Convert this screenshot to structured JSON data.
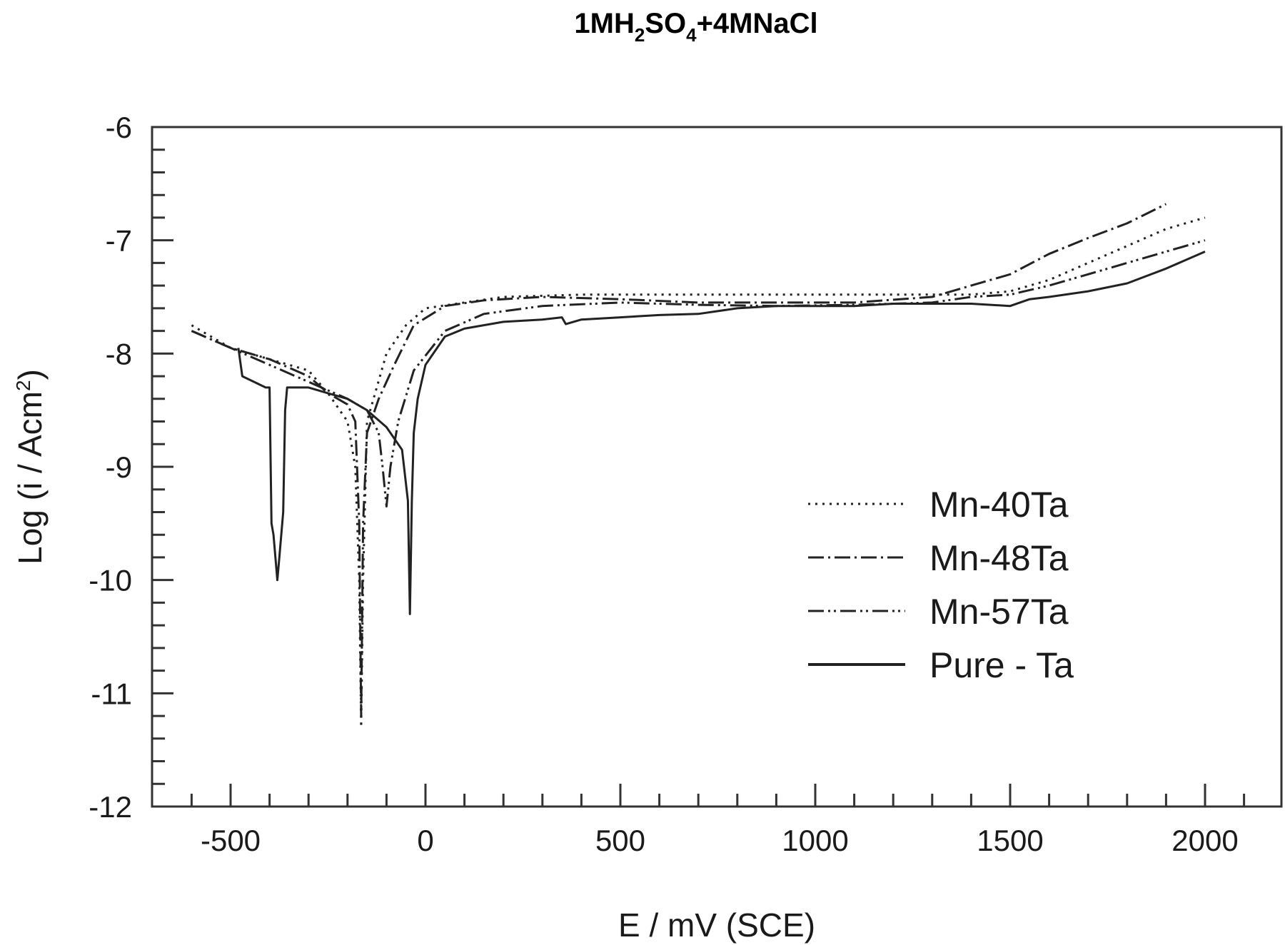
{
  "chart_data": {
    "type": "line",
    "title": "1MH2SO4+4MNaCl",
    "title_parts": {
      "a": "1MH",
      "sub1": "2",
      "b": "SO",
      "sub2": "4",
      "c": "+4MNaCl"
    },
    "xlabel": "E / mV (SCE)",
    "ylabel": "Log (i / Acm2)",
    "ylabel_parts": {
      "main": "Log (i / Acm",
      "sup": "2",
      "end": ")"
    },
    "xlim": [
      -700,
      2200
    ],
    "ylim": [
      -12,
      -6
    ],
    "xticks": [
      -500,
      0,
      500,
      1000,
      1500,
      2000
    ],
    "xtick_labels": [
      "-500",
      "0",
      "500",
      "1000",
      "1500",
      "2000"
    ],
    "yticks": [
      -6,
      -7,
      -8,
      -9,
      -10,
      -11,
      -12
    ],
    "ytick_labels": [
      "-6",
      "-7",
      "-8",
      "-9",
      "-10",
      "-11",
      "-12"
    ],
    "grid": false,
    "legend_position": "center-right (inside plot)",
    "series": [
      {
        "name": "Mn-40Ta",
        "style": "dotted",
        "x": [
          -600,
          -500,
          -400,
          -300,
          -250,
          -200,
          -180,
          -170,
          -165,
          -160,
          -150,
          -100,
          -50,
          0,
          100,
          200,
          400,
          600,
          800,
          1000,
          1200,
          1400,
          1500,
          1600,
          1700,
          1800,
          1900,
          2000
        ],
        "y": [
          -7.75,
          -7.95,
          -8.05,
          -8.15,
          -8.35,
          -8.6,
          -9.0,
          -10.0,
          -11.3,
          -10.0,
          -8.6,
          -8.0,
          -7.75,
          -7.6,
          -7.55,
          -7.5,
          -7.48,
          -7.48,
          -7.48,
          -7.48,
          -7.48,
          -7.48,
          -7.45,
          -7.35,
          -7.2,
          -7.05,
          -6.9,
          -6.8
        ]
      },
      {
        "name": "Mn-48Ta",
        "style": "dash-dot",
        "x": [
          -600,
          -500,
          -400,
          -300,
          -250,
          -200,
          -180,
          -170,
          -165,
          -160,
          -150,
          -120,
          -80,
          -30,
          50,
          150,
          300,
          500,
          700,
          900,
          1100,
          1300,
          1400,
          1500,
          1600,
          1700,
          1800,
          1900
        ],
        "y": [
          -7.8,
          -7.95,
          -8.05,
          -8.2,
          -8.35,
          -8.45,
          -8.6,
          -9.5,
          -11.2,
          -9.5,
          -8.7,
          -8.4,
          -8.1,
          -7.75,
          -7.58,
          -7.53,
          -7.5,
          -7.52,
          -7.55,
          -7.55,
          -7.55,
          -7.5,
          -7.4,
          -7.3,
          -7.12,
          -6.98,
          -6.85,
          -6.68
        ]
      },
      {
        "name": "Mn-57Ta",
        "style": "dash-dot-dot",
        "x": [
          -600,
          -500,
          -400,
          -300,
          -200,
          -150,
          -120,
          -110,
          -100,
          -90,
          -70,
          -30,
          50,
          150,
          300,
          500,
          700,
          900,
          1100,
          1300,
          1400,
          1500,
          1600,
          1700,
          1800,
          1900,
          2000
        ],
        "y": [
          -7.8,
          -7.95,
          -8.1,
          -8.25,
          -8.4,
          -8.5,
          -8.7,
          -9.0,
          -9.35,
          -9.0,
          -8.6,
          -8.15,
          -7.8,
          -7.65,
          -7.58,
          -7.55,
          -7.57,
          -7.58,
          -7.57,
          -7.55,
          -7.5,
          -7.48,
          -7.4,
          -7.3,
          -7.2,
          -7.1,
          -7.0
        ]
      },
      {
        "name": "Pure - Ta",
        "style": "solid",
        "x": [
          -480,
          -470,
          -440,
          -410,
          -400,
          -395,
          -390,
          -380,
          -375,
          -370,
          -365,
          -360,
          -355,
          -300,
          -250,
          -200,
          -150,
          -100,
          -60,
          -45,
          -40,
          -35,
          -30,
          -20,
          0,
          50,
          100,
          200,
          300,
          350,
          360,
          400,
          500,
          600,
          700,
          800,
          900,
          1000,
          1100,
          1200,
          1300,
          1400,
          1500,
          1550,
          1600,
          1700,
          1800,
          1900,
          2000
        ],
        "y": [
          -7.95,
          -8.2,
          -8.25,
          -8.3,
          -8.3,
          -9.5,
          -9.6,
          -10.0,
          -9.8,
          -9.6,
          -9.4,
          -8.5,
          -8.3,
          -8.3,
          -8.35,
          -8.4,
          -8.5,
          -8.65,
          -8.85,
          -9.3,
          -10.3,
          -9.3,
          -8.7,
          -8.4,
          -8.1,
          -7.85,
          -7.78,
          -7.72,
          -7.7,
          -7.68,
          -7.74,
          -7.7,
          -7.68,
          -7.66,
          -7.65,
          -7.6,
          -7.58,
          -7.58,
          -7.58,
          -7.56,
          -7.56,
          -7.56,
          -7.58,
          -7.52,
          -7.5,
          -7.45,
          -7.38,
          -7.25,
          -7.1
        ]
      }
    ]
  }
}
